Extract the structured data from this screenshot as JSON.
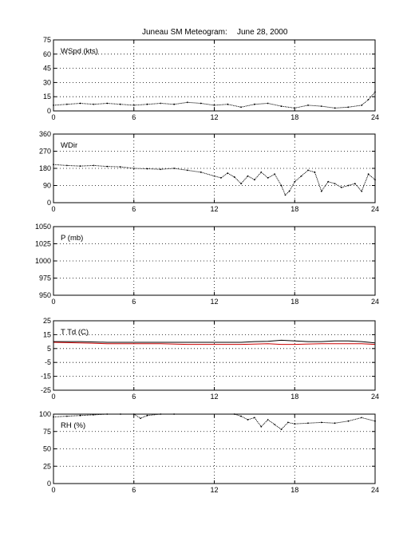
{
  "title_left": "Juneau SM Meteogram:",
  "title_right": "June 28, 2000",
  "colors": {
    "dew": "#cc0000",
    "ink": "#000000"
  },
  "chart_data": [
    {
      "type": "scatter",
      "label": "WSpd (kts)",
      "xlim": [
        0,
        24
      ],
      "ylim": [
        0,
        75
      ],
      "x_ticks": [
        0,
        6,
        12,
        18,
        24
      ],
      "y_ticks": [
        0,
        15,
        30,
        45,
        60,
        75
      ],
      "grid": true,
      "series": [
        {
          "color": "#000000",
          "x": [
            0,
            1,
            2,
            3,
            4,
            5,
            6,
            7,
            8,
            9,
            10,
            11,
            12,
            13,
            14,
            15,
            16,
            17,
            18,
            19,
            20,
            21,
            22,
            23,
            23.5,
            24
          ],
          "y": [
            6,
            7,
            8,
            7,
            8,
            7,
            6,
            7,
            8,
            7,
            9,
            8,
            6,
            7,
            4,
            7,
            8,
            5,
            3,
            6,
            5,
            3,
            4,
            6,
            12,
            20
          ]
        }
      ]
    },
    {
      "type": "scatter",
      "label": "WDir",
      "xlim": [
        0,
        24
      ],
      "ylim": [
        0,
        360
      ],
      "x_ticks": [
        0,
        6,
        12,
        18,
        24
      ],
      "y_ticks": [
        0,
        90,
        180,
        270,
        360
      ],
      "grid": true,
      "series": [
        {
          "color": "#000000",
          "x": [
            0,
            1,
            2,
            3,
            4,
            5,
            6,
            7,
            8,
            9,
            10,
            11,
            12,
            12.5,
            13,
            13.5,
            14,
            14.5,
            15,
            15.5,
            16,
            16.5,
            17,
            17.3,
            17.6,
            18,
            18.5,
            19,
            19.5,
            20,
            20.5,
            21,
            21.5,
            22,
            22.5,
            23,
            23.5,
            24
          ],
          "y": [
            200,
            195,
            192,
            195,
            190,
            188,
            180,
            178,
            175,
            180,
            170,
            160,
            140,
            130,
            155,
            135,
            100,
            140,
            120,
            160,
            130,
            150,
            90,
            40,
            60,
            110,
            140,
            170,
            160,
            60,
            110,
            100,
            80,
            90,
            100,
            60,
            150,
            120
          ]
        }
      ]
    },
    {
      "type": "line",
      "label": "P (mb)",
      "xlim": [
        0,
        24
      ],
      "ylim": [
        950,
        1050
      ],
      "x_ticks": [
        0,
        6,
        12,
        18,
        24
      ],
      "y_ticks": [
        950,
        975,
        1000,
        1025,
        1050
      ],
      "grid": true,
      "series": []
    },
    {
      "type": "line",
      "label": "T Td (C)",
      "xlim": [
        0,
        24
      ],
      "ylim": [
        -25,
        25
      ],
      "x_ticks": [
        0,
        6,
        12,
        18,
        24
      ],
      "y_ticks": [
        -25,
        -15,
        -5,
        5,
        15,
        25
      ],
      "grid": true,
      "series": [
        {
          "color": "#000000",
          "x": [
            0,
            2,
            4,
            6,
            8,
            10,
            12,
            14,
            15,
            16,
            17,
            18,
            19,
            20,
            21,
            22,
            23,
            24
          ],
          "y": [
            10,
            10,
            9.5,
            9.5,
            9.5,
            9.5,
            9.5,
            9.5,
            10,
            10.2,
            11,
            10.5,
            10,
            10,
            10.5,
            10.5,
            10,
            9
          ]
        },
        {
          "color": "#cc0000",
          "x": [
            0,
            2,
            4,
            6,
            8,
            10,
            12,
            14,
            16,
            17,
            18,
            20,
            22,
            23,
            24
          ],
          "y": [
            9.5,
            9,
            8.5,
            8.5,
            8.5,
            8,
            8,
            8,
            8.5,
            8,
            8,
            8.5,
            8.5,
            8.5,
            8
          ]
        }
      ]
    },
    {
      "type": "scatter",
      "label": "RH (%)",
      "xlim": [
        0,
        24
      ],
      "ylim": [
        0,
        100
      ],
      "x_ticks": [
        0,
        6,
        12,
        18,
        24
      ],
      "y_ticks": [
        0,
        25,
        50,
        75,
        100
      ],
      "grid": true,
      "series": [
        {
          "color": "#000000",
          "x": [
            0,
            1,
            2,
            3,
            4,
            5,
            6,
            6.5,
            7,
            8,
            9,
            13.5,
            14,
            14.5,
            15,
            15.5,
            16,
            16.5,
            17,
            17.5,
            18,
            19,
            20,
            21,
            22,
            23,
            24
          ],
          "y": [
            96,
            97,
            98,
            99,
            100,
            100,
            100,
            94,
            98,
            100,
            100,
            100,
            97,
            92,
            95,
            82,
            92,
            85,
            78,
            88,
            86,
            87,
            88,
            87,
            90,
            95,
            90
          ]
        }
      ]
    }
  ]
}
